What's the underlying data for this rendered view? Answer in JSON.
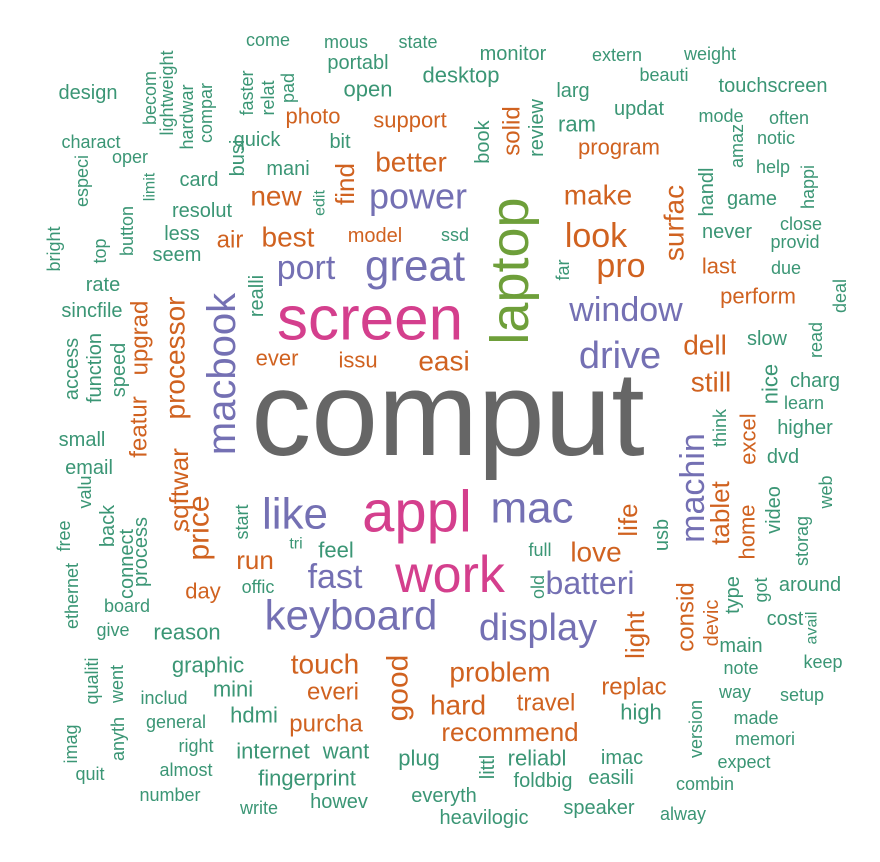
{
  "colors": {
    "gray": "#666666",
    "pink": "#d43f8d",
    "green": "#6e9f3a",
    "purple": "#7470b3",
    "orange": "#d06220",
    "teal": "#3b9675"
  },
  "words": [
    {
      "text": "comput",
      "color": "gray"
    },
    {
      "text": "screen",
      "color": "pink"
    },
    {
      "text": "appl",
      "color": "pink"
    },
    {
      "text": "work",
      "color": "pink"
    },
    {
      "text": "laptop",
      "color": "green"
    },
    {
      "text": "great",
      "color": "purple"
    },
    {
      "text": "macbook",
      "color": "purple"
    },
    {
      "text": "keyboard",
      "color": "purple"
    },
    {
      "text": "like",
      "color": "purple"
    },
    {
      "text": "mac",
      "color": "purple"
    },
    {
      "text": "display",
      "color": "purple"
    },
    {
      "text": "drive",
      "color": "purple"
    },
    {
      "text": "window",
      "color": "purple"
    },
    {
      "text": "power",
      "color": "purple"
    },
    {
      "text": "port",
      "color": "purple"
    },
    {
      "text": "fast",
      "color": "purple"
    },
    {
      "text": "batteri",
      "color": "purple"
    },
    {
      "text": "machin",
      "color": "purple"
    },
    {
      "text": "look",
      "color": "orange"
    },
    {
      "text": "pro",
      "color": "orange"
    },
    {
      "text": "good",
      "color": "orange"
    },
    {
      "text": "price",
      "color": "orange"
    },
    {
      "text": "processor",
      "color": "orange"
    },
    {
      "text": "problem",
      "color": "orange"
    },
    {
      "text": "touch",
      "color": "orange"
    },
    {
      "text": "recommend",
      "color": "orange"
    },
    {
      "text": "hard",
      "color": "orange"
    },
    {
      "text": "best",
      "color": "orange"
    },
    {
      "text": "easi",
      "color": "orange"
    },
    {
      "text": "surfac",
      "color": "orange"
    },
    {
      "text": "make",
      "color": "orange"
    },
    {
      "text": "better",
      "color": "orange"
    },
    {
      "text": "love",
      "color": "orange"
    },
    {
      "text": "still",
      "color": "orange"
    },
    {
      "text": "dell",
      "color": "orange"
    },
    {
      "text": "tablet",
      "color": "orange"
    },
    {
      "text": "new",
      "color": "orange"
    },
    {
      "text": "find",
      "color": "orange"
    },
    {
      "text": "run",
      "color": "orange"
    },
    {
      "text": "sqftwar",
      "color": "orange"
    },
    {
      "text": "upgrad",
      "color": "orange"
    },
    {
      "text": "featur",
      "color": "orange"
    },
    {
      "text": "life",
      "color": "orange"
    },
    {
      "text": "light",
      "color": "orange"
    },
    {
      "text": "consid",
      "color": "orange"
    },
    {
      "text": "replac",
      "color": "orange"
    },
    {
      "text": "purcha",
      "color": "orange"
    },
    {
      "text": "everi",
      "color": "orange"
    },
    {
      "text": "travel",
      "color": "orange"
    },
    {
      "text": "solid",
      "color": "orange"
    },
    {
      "text": "photo",
      "color": "orange"
    },
    {
      "text": "support",
      "color": "orange"
    },
    {
      "text": "program",
      "color": "orange"
    },
    {
      "text": "air",
      "color": "orange"
    },
    {
      "text": "ever",
      "color": "orange"
    },
    {
      "text": "issu",
      "color": "orange"
    },
    {
      "text": "day",
      "color": "orange"
    },
    {
      "text": "last",
      "color": "orange"
    },
    {
      "text": "perform",
      "color": "orange"
    },
    {
      "text": "excel",
      "color": "orange"
    },
    {
      "text": "home",
      "color": "orange"
    },
    {
      "text": "devic",
      "color": "orange"
    },
    {
      "text": "model",
      "color": "orange"
    },
    {
      "text": "design",
      "color": "teal"
    },
    {
      "text": "charact",
      "color": "teal"
    },
    {
      "text": "especi",
      "color": "teal"
    },
    {
      "text": "oper",
      "color": "teal"
    },
    {
      "text": "becom",
      "color": "teal"
    },
    {
      "text": "lightweight",
      "color": "teal"
    },
    {
      "text": "hardwar",
      "color": "teal"
    },
    {
      "text": "compar",
      "color": "teal"
    },
    {
      "text": "come",
      "color": "teal"
    },
    {
      "text": "faster",
      "color": "teal"
    },
    {
      "text": "relat",
      "color": "teal"
    },
    {
      "text": "pad",
      "color": "teal"
    },
    {
      "text": "mous",
      "color": "teal"
    },
    {
      "text": "state",
      "color": "teal"
    },
    {
      "text": "portabl",
      "color": "teal"
    },
    {
      "text": "monitor",
      "color": "teal"
    },
    {
      "text": "extern",
      "color": "teal"
    },
    {
      "text": "weight",
      "color": "teal"
    },
    {
      "text": "beauti",
      "color": "teal"
    },
    {
      "text": "touchscreen",
      "color": "teal"
    },
    {
      "text": "open",
      "color": "teal"
    },
    {
      "text": "desktop",
      "color": "teal"
    },
    {
      "text": "larg",
      "color": "teal"
    },
    {
      "text": "updat",
      "color": "teal"
    },
    {
      "text": "mode",
      "color": "teal"
    },
    {
      "text": "often",
      "color": "teal"
    },
    {
      "text": "notic",
      "color": "teal"
    },
    {
      "text": "amaz",
      "color": "teal"
    },
    {
      "text": "busi",
      "color": "teal"
    },
    {
      "text": "quick",
      "color": "teal"
    },
    {
      "text": "bit",
      "color": "teal"
    },
    {
      "text": "book",
      "color": "teal"
    },
    {
      "text": "review",
      "color": "teal"
    },
    {
      "text": "ram",
      "color": "teal"
    },
    {
      "text": "card",
      "color": "teal"
    },
    {
      "text": "mani",
      "color": "teal"
    },
    {
      "text": "help",
      "color": "teal"
    },
    {
      "text": "happi",
      "color": "teal"
    },
    {
      "text": "handl",
      "color": "teal"
    },
    {
      "text": "game",
      "color": "teal"
    },
    {
      "text": "limit",
      "color": "teal"
    },
    {
      "text": "button",
      "color": "teal"
    },
    {
      "text": "resolut",
      "color": "teal"
    },
    {
      "text": "edit",
      "color": "teal"
    },
    {
      "text": "bright",
      "color": "teal"
    },
    {
      "text": "top",
      "color": "teal"
    },
    {
      "text": "less",
      "color": "teal"
    },
    {
      "text": "seem",
      "color": "teal"
    },
    {
      "text": "ssd",
      "color": "teal"
    },
    {
      "text": "never",
      "color": "teal"
    },
    {
      "text": "close",
      "color": "teal"
    },
    {
      "text": "provid",
      "color": "teal"
    },
    {
      "text": "rate",
      "color": "teal"
    },
    {
      "text": "sincfile",
      "color": "teal"
    },
    {
      "text": "realli",
      "color": "teal"
    },
    {
      "text": "far",
      "color": "teal"
    },
    {
      "text": "due",
      "color": "teal"
    },
    {
      "text": "deal",
      "color": "teal"
    },
    {
      "text": "access",
      "color": "teal"
    },
    {
      "text": "function",
      "color": "teal"
    },
    {
      "text": "speed",
      "color": "teal"
    },
    {
      "text": "slow",
      "color": "teal"
    },
    {
      "text": "read",
      "color": "teal"
    },
    {
      "text": "nice",
      "color": "teal"
    },
    {
      "text": "charg",
      "color": "teal"
    },
    {
      "text": "learn",
      "color": "teal"
    },
    {
      "text": "small",
      "color": "teal"
    },
    {
      "text": "think",
      "color": "teal"
    },
    {
      "text": "higher",
      "color": "teal"
    },
    {
      "text": "email",
      "color": "teal"
    },
    {
      "text": "dvd",
      "color": "teal"
    },
    {
      "text": "valu",
      "color": "teal"
    },
    {
      "text": "back",
      "color": "teal"
    },
    {
      "text": "start",
      "color": "teal"
    },
    {
      "text": "video",
      "color": "teal"
    },
    {
      "text": "web",
      "color": "teal"
    },
    {
      "text": "free",
      "color": "teal"
    },
    {
      "text": "connect",
      "color": "teal"
    },
    {
      "text": "process",
      "color": "teal"
    },
    {
      "text": "tri",
      "color": "teal"
    },
    {
      "text": "feel",
      "color": "teal"
    },
    {
      "text": "full",
      "color": "teal"
    },
    {
      "text": "storag",
      "color": "teal"
    },
    {
      "text": "usb",
      "color": "teal"
    },
    {
      "text": "ethernet",
      "color": "teal"
    },
    {
      "text": "offic",
      "color": "teal"
    },
    {
      "text": "old",
      "color": "teal"
    },
    {
      "text": "type",
      "color": "teal"
    },
    {
      "text": "got",
      "color": "teal"
    },
    {
      "text": "around",
      "color": "teal"
    },
    {
      "text": "board",
      "color": "teal"
    },
    {
      "text": "cost",
      "color": "teal"
    },
    {
      "text": "avail",
      "color": "teal"
    },
    {
      "text": "give",
      "color": "teal"
    },
    {
      "text": "reason",
      "color": "teal"
    },
    {
      "text": "main",
      "color": "teal"
    },
    {
      "text": "qualiti",
      "color": "teal"
    },
    {
      "text": "went",
      "color": "teal"
    },
    {
      "text": "graphic",
      "color": "teal"
    },
    {
      "text": "note",
      "color": "teal"
    },
    {
      "text": "keep",
      "color": "teal"
    },
    {
      "text": "includ",
      "color": "teal"
    },
    {
      "text": "mini",
      "color": "teal"
    },
    {
      "text": "way",
      "color": "teal"
    },
    {
      "text": "setup",
      "color": "teal"
    },
    {
      "text": "imag",
      "color": "teal"
    },
    {
      "text": "anyth",
      "color": "teal"
    },
    {
      "text": "general",
      "color": "teal"
    },
    {
      "text": "hdmi",
      "color": "teal"
    },
    {
      "text": "high",
      "color": "teal"
    },
    {
      "text": "version",
      "color": "teal"
    },
    {
      "text": "made",
      "color": "teal"
    },
    {
      "text": "right",
      "color": "teal"
    },
    {
      "text": "memori",
      "color": "teal"
    },
    {
      "text": "quit",
      "color": "teal"
    },
    {
      "text": "internet",
      "color": "teal"
    },
    {
      "text": "want",
      "color": "teal"
    },
    {
      "text": "plug",
      "color": "teal"
    },
    {
      "text": "littl",
      "color": "teal"
    },
    {
      "text": "reliabl",
      "color": "teal"
    },
    {
      "text": "imac",
      "color": "teal"
    },
    {
      "text": "expect",
      "color": "teal"
    },
    {
      "text": "almost",
      "color": "teal"
    },
    {
      "text": "fingerprint",
      "color": "teal"
    },
    {
      "text": "foldbig",
      "color": "teal"
    },
    {
      "text": "easili",
      "color": "teal"
    },
    {
      "text": "combin",
      "color": "teal"
    },
    {
      "text": "number",
      "color": "teal"
    },
    {
      "text": "howev",
      "color": "teal"
    },
    {
      "text": "everyth",
      "color": "teal"
    },
    {
      "text": "alway",
      "color": "teal"
    },
    {
      "text": "write",
      "color": "teal"
    },
    {
      "text": "heavilogic",
      "color": "teal"
    },
    {
      "text": "speaker",
      "color": "teal"
    }
  ]
}
